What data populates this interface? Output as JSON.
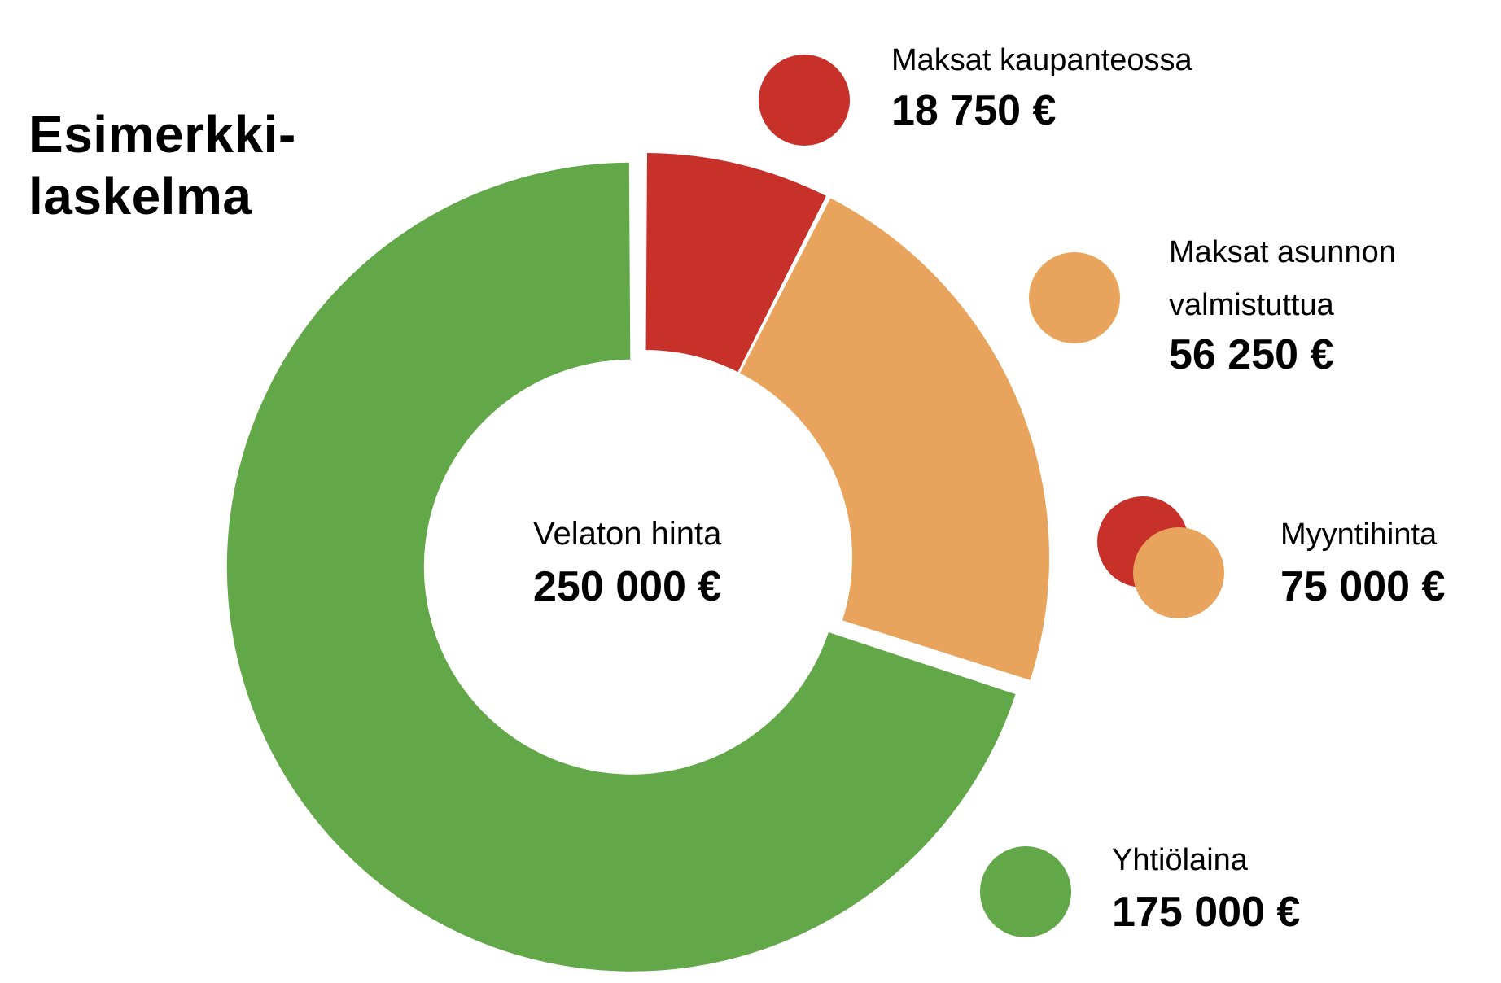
{
  "title": "Esimerkki-\nlaskelma",
  "colors": {
    "red": "#c8302a",
    "orange": "#e8a45c",
    "green": "#62a748",
    "separator": "#ffffff"
  },
  "chart_data": {
    "type": "pie",
    "center_label": "Velaton hinta",
    "center_value": "250 000 €",
    "total": 250000,
    "slices": [
      {
        "name": "Maksat kaupanteossa",
        "value": 18750,
        "label": "18 750 €",
        "color": "#c8302a",
        "exploded": false
      },
      {
        "name": "Maksat asunnon valmistuttua",
        "value": 56250,
        "label": "56 250 €",
        "color": "#e8a45c",
        "exploded": false
      },
      {
        "name": "Yhtiölaina",
        "value": 175000,
        "label": "175 000 €",
        "color": "#62a748",
        "exploded": true
      }
    ]
  },
  "legend": {
    "kaupanteossa": {
      "label": "Maksat kaupanteossa",
      "value": "18 750 €",
      "color": "#c8302a"
    },
    "valmistuttua": {
      "label": "Maksat asunnon\nvalmistuttua",
      "value": "56 250 €",
      "color": "#e8a45c"
    },
    "myyntihinta": {
      "label": "Myyntihinta",
      "value": "75 000 €",
      "colors": [
        "#c8302a",
        "#e8a45c"
      ]
    },
    "yhtiolaina": {
      "label": "Yhtiölaina",
      "value": "175 000 €",
      "color": "#62a748"
    }
  }
}
